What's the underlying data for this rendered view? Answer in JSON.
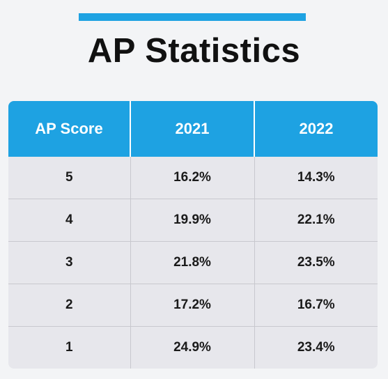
{
  "chart_data": {
    "type": "table",
    "title": "AP Statistics",
    "columns": [
      "AP Score",
      "2021",
      "2022"
    ],
    "rows": [
      [
        "5",
        "16.2%",
        "14.3%"
      ],
      [
        "4",
        "19.9%",
        "22.1%"
      ],
      [
        "3",
        "21.8%",
        "23.5%"
      ],
      [
        "2",
        "17.2%",
        "16.7%"
      ],
      [
        "1",
        "24.9%",
        "23.4%"
      ]
    ],
    "series": [
      {
        "name": "2021",
        "values": [
          16.2,
          19.9,
          21.8,
          17.2,
          24.9
        ]
      },
      {
        "name": "2022",
        "values": [
          14.3,
          22.1,
          23.5,
          16.7,
          23.4
        ]
      }
    ],
    "categories": [
      "5",
      "4",
      "3",
      "2",
      "1"
    ]
  },
  "colors": {
    "accent": "#1ea2e2",
    "header_text": "#ffffff",
    "row_bg": "#e7e7ec",
    "page_bg": "#f3f4f6"
  }
}
